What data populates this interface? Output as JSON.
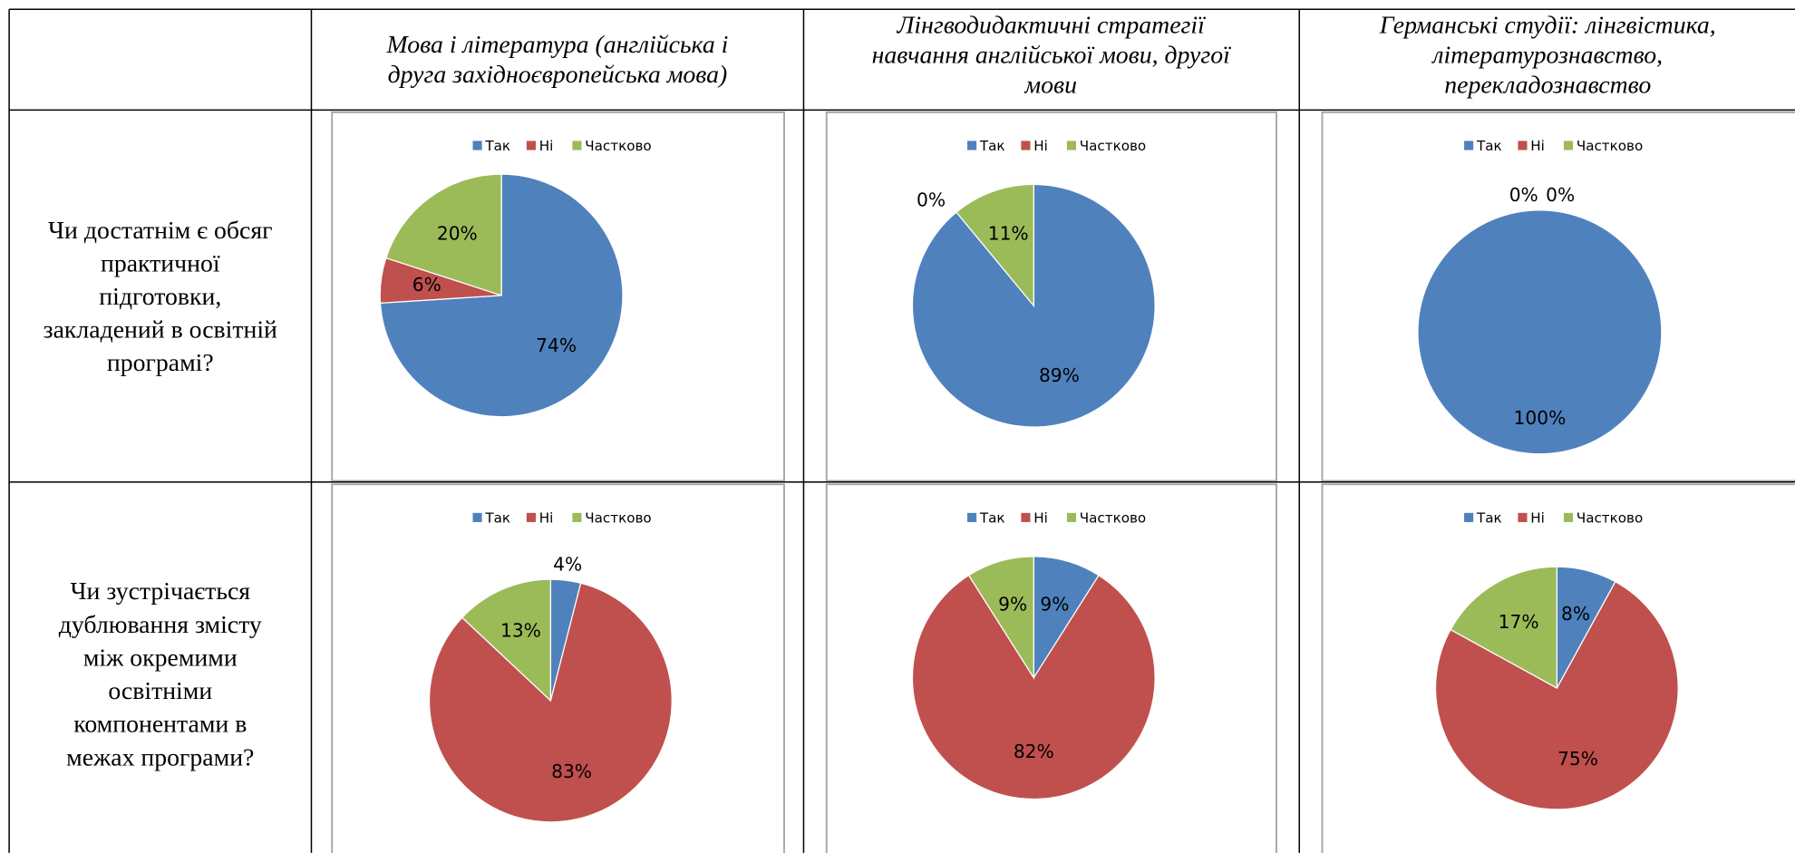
{
  "table": {
    "columns": [
      [
        "Мова  і література (англійська і",
        "друга західноєвропейська мова)"
      ],
      [
        "Лінгводидактичні стратегії",
        "навчання англійської мови, другої",
        "мови"
      ],
      [
        "Германські студії: лінгвістика,",
        "літературознавство,",
        "перекладознавство"
      ]
    ],
    "rows": [
      [
        "Чи достатнім є обсяг",
        "практичної",
        "підготовки,",
        "закладений в освітній",
        "програмі?"
      ],
      [
        "Чи зустрічається",
        "дублювання змісту",
        "між окремими",
        "освітніми",
        "компонентами в",
        "межах програми?"
      ]
    ]
  },
  "chart_data": [
    {
      "type": "pie",
      "categories": [
        "Так",
        "Ні",
        "Частково"
      ],
      "colors": [
        "#4f81bd",
        "#c0504d",
        "#9bbb59"
      ],
      "values": [
        74,
        6,
        20
      ],
      "value_labels": [
        "74%",
        "6%",
        "20%"
      ]
    },
    {
      "type": "pie",
      "categories": [
        "Так",
        "Ні",
        "Частково"
      ],
      "colors": [
        "#4f81bd",
        "#c0504d",
        "#9bbb59"
      ],
      "values": [
        89,
        0,
        11
      ],
      "value_labels": [
        "89%",
        "0%",
        "11%"
      ]
    },
    {
      "type": "pie",
      "categories": [
        "Так",
        "Ні",
        "Частково"
      ],
      "colors": [
        "#4f81bd",
        "#c0504d",
        "#9bbb59"
      ],
      "values": [
        100,
        0,
        0
      ],
      "value_labels": [
        "100%",
        "0%",
        "0%"
      ]
    },
    {
      "type": "pie",
      "categories": [
        "Так",
        "Ні",
        "Частково"
      ],
      "colors": [
        "#4f81bd",
        "#c0504d",
        "#9bbb59"
      ],
      "values": [
        4,
        83,
        13
      ],
      "value_labels": [
        "4%",
        "83%",
        "13%"
      ]
    },
    {
      "type": "pie",
      "categories": [
        "Так",
        "Ні",
        "Частково"
      ],
      "colors": [
        "#4f81bd",
        "#c0504d",
        "#9bbb59"
      ],
      "values": [
        9,
        82,
        9
      ],
      "value_labels": [
        "9%",
        "82%",
        "9%"
      ]
    },
    {
      "type": "pie",
      "categories": [
        "Так",
        "Ні",
        "Частково"
      ],
      "colors": [
        "#4f81bd",
        "#c0504d",
        "#9bbb59"
      ],
      "values": [
        8,
        75,
        17
      ],
      "value_labels": [
        "8%",
        "75%",
        "17%"
      ]
    }
  ]
}
